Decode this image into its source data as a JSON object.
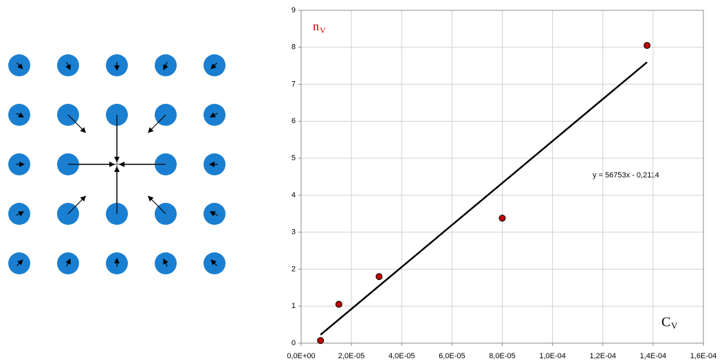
{
  "chart_data": {
    "type": "scatter",
    "x": [
      7.7e-06,
      1.5e-05,
      3.1e-05,
      8e-05,
      0.0001376
    ],
    "values": [
      0.07,
      1.05,
      1.8,
      3.38,
      8.05
    ],
    "color": "#c00000",
    "xlim": [
      0,
      0.00016
    ],
    "xticks": [
      {
        "value": 0,
        "label": "0,0E+00"
      },
      {
        "value": 2e-05,
        "label": "2,0E-05"
      },
      {
        "value": 4e-05,
        "label": "4,0E-05"
      },
      {
        "value": 6e-05,
        "label": "6,0E-05"
      },
      {
        "value": 8e-05,
        "label": "8,0E-05"
      },
      {
        "value": 0.0001,
        "label": "1,0E-04"
      },
      {
        "value": 0.00012,
        "label": "1,2E-04"
      },
      {
        "value": 0.00014,
        "label": "1,4E-04"
      },
      {
        "value": 0.00016,
        "label": "1,6E-04"
      }
    ],
    "ylim": [
      0,
      9
    ],
    "yticks": [
      0,
      1,
      2,
      3,
      4,
      5,
      6,
      7,
      8,
      9
    ],
    "grid": true,
    "ylabel": {
      "text": "n",
      "subscript": "V"
    },
    "xlabel": {
      "text": "C",
      "subscript": "V"
    },
    "trendline": {
      "slope": 56753,
      "intercept": -0.2114,
      "label": "y = 56753x - 0,2114"
    }
  }
}
